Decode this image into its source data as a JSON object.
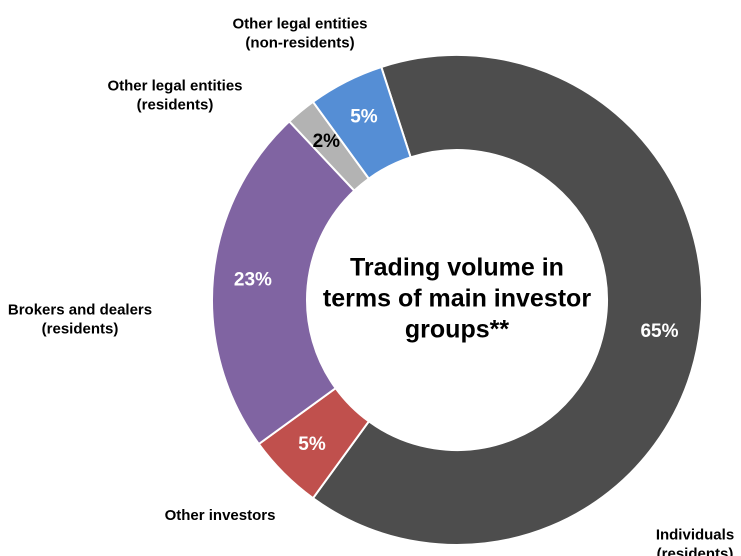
{
  "chart_data": {
    "type": "donut",
    "title": [
      "Trading volume in",
      "terms of main investor",
      "groups**"
    ],
    "categories": [
      [
        "Individuals",
        "(residents)"
      ],
      [
        "Other investors"
      ],
      [
        "Brokers and dealers",
        "(residents)"
      ],
      [
        "Other legal entities",
        "(residents)"
      ],
      [
        "Other legal entities",
        "(non-residents)"
      ]
    ],
    "values": [
      65,
      5,
      23,
      2,
      5
    ],
    "value_labels": [
      "65%",
      "5%",
      "23%",
      "2%",
      "5%"
    ],
    "colors": [
      "#4d4d4d",
      "#c0504d",
      "#8064a2",
      "#b3b3b3",
      "#558ed5"
    ],
    "value_label_colors": [
      "#ffffff",
      "#ffffff",
      "#ffffff",
      "#000000",
      "#ffffff"
    ]
  }
}
